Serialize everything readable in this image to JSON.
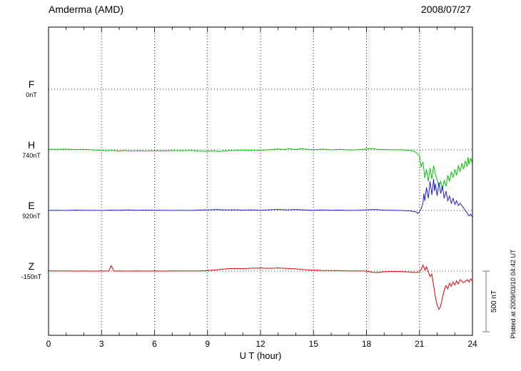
{
  "header": {
    "station": "Amderma (AMD)",
    "date": "2008/07/27"
  },
  "footer_note": "Plotted at 2009/03/10 04:42 UT",
  "chart_data": {
    "type": "line",
    "title": "Amderma (AMD)",
    "xlabel": "U T (hour)",
    "y_unit": "nT",
    "xlim": [
      0,
      24
    ],
    "x_ticks": [
      0,
      3,
      6,
      9,
      12,
      15,
      18,
      21,
      24
    ],
    "x_minor_step": 1,
    "grid": "dotted vertical at 3h, dotted horizontal at each baseline",
    "legend_position": "left-margin",
    "scale_bar": {
      "label": "500 nT",
      "nT": 500
    },
    "series": [
      {
        "name": "F",
        "label": "F",
        "baseline_label": "0nT",
        "baseline_nT": 0,
        "color": "#f0a500",
        "points": []
      },
      {
        "name": "H",
        "label": "H",
        "baseline_label": "740nT",
        "baseline_nT": 740,
        "color": "#00c400",
        "points": [
          [
            0,
            5
          ],
          [
            0.5,
            4
          ],
          [
            1,
            6
          ],
          [
            1.5,
            3
          ],
          [
            2,
            4
          ],
          [
            2.5,
            0
          ],
          [
            3,
            -4
          ],
          [
            3.3,
            -8
          ],
          [
            3.6,
            -5
          ],
          [
            4,
            -10
          ],
          [
            4.3,
            -6
          ],
          [
            4.6,
            -11
          ],
          [
            5,
            -8
          ],
          [
            5.5,
            -10
          ],
          [
            6,
            -7
          ],
          [
            6.5,
            -9
          ],
          [
            7,
            -6
          ],
          [
            7.5,
            -8
          ],
          [
            8,
            -5
          ],
          [
            8.5,
            -10
          ],
          [
            9,
            -13
          ],
          [
            9.3,
            -7
          ],
          [
            9.6,
            -14
          ],
          [
            10,
            -8
          ],
          [
            10.5,
            -4
          ],
          [
            11,
            -2
          ],
          [
            11.5,
            -6
          ],
          [
            12,
            -3
          ],
          [
            12.5,
            2
          ],
          [
            13,
            7
          ],
          [
            13.3,
            2
          ],
          [
            13.6,
            9
          ],
          [
            14,
            3
          ],
          [
            14.3,
            10
          ],
          [
            14.6,
            4
          ],
          [
            15,
            2
          ],
          [
            15.5,
            6
          ],
          [
            16,
            0
          ],
          [
            16.5,
            4
          ],
          [
            17,
            -2
          ],
          [
            17.5,
            2
          ],
          [
            18,
            7
          ],
          [
            18.3,
            11
          ],
          [
            18.6,
            5
          ],
          [
            19,
            3
          ],
          [
            19.5,
            0
          ],
          [
            20,
            2
          ],
          [
            20.3,
            -3
          ],
          [
            20.6,
            -8
          ],
          [
            20.8,
            -20
          ],
          [
            21,
            -50
          ],
          [
            21.1,
            -140
          ],
          [
            21.2,
            -100
          ],
          [
            21.3,
            -230
          ],
          [
            21.4,
            -160
          ],
          [
            21.5,
            -260
          ],
          [
            21.6,
            -150
          ],
          [
            21.7,
            -240
          ],
          [
            21.8,
            -130
          ],
          [
            21.9,
            -200
          ],
          [
            22,
            -250
          ],
          [
            22.1,
            -300
          ],
          [
            22.2,
            -260
          ],
          [
            22.3,
            -330
          ],
          [
            22.4,
            -250
          ],
          [
            22.5,
            -300
          ],
          [
            22.6,
            -210
          ],
          [
            22.7,
            -260
          ],
          [
            22.8,
            -180
          ],
          [
            22.9,
            -230
          ],
          [
            23,
            -160
          ],
          [
            23.1,
            -210
          ],
          [
            23.2,
            -130
          ],
          [
            23.3,
            -180
          ],
          [
            23.4,
            -110
          ],
          [
            23.5,
            -160
          ],
          [
            23.6,
            -90
          ],
          [
            23.7,
            -140
          ],
          [
            23.75,
            -60
          ],
          [
            23.8,
            -120
          ],
          [
            23.9,
            -70
          ],
          [
            24,
            -110
          ]
        ]
      },
      {
        "name": "E",
        "label": "E",
        "baseline_label": "920nT",
        "baseline_nT": 920,
        "color": "#2020cc",
        "points": [
          [
            0,
            0
          ],
          [
            0.5,
            2
          ],
          [
            1,
            0
          ],
          [
            1.5,
            3
          ],
          [
            2,
            1
          ],
          [
            2.5,
            2
          ],
          [
            3,
            0
          ],
          [
            3.5,
            3
          ],
          [
            4,
            1
          ],
          [
            4.5,
            4
          ],
          [
            5,
            2
          ],
          [
            5.5,
            3
          ],
          [
            6,
            1
          ],
          [
            6.5,
            2
          ],
          [
            7,
            0
          ],
          [
            7.5,
            2
          ],
          [
            8,
            0
          ],
          [
            8.5,
            3
          ],
          [
            9,
            5
          ],
          [
            9.5,
            8
          ],
          [
            10,
            4
          ],
          [
            10.5,
            6
          ],
          [
            11,
            3
          ],
          [
            11.5,
            5
          ],
          [
            12,
            2
          ],
          [
            12.5,
            6
          ],
          [
            13,
            9
          ],
          [
            13.5,
            5
          ],
          [
            14,
            8
          ],
          [
            14.5,
            4
          ],
          [
            15,
            2
          ],
          [
            15.5,
            4
          ],
          [
            16,
            1
          ],
          [
            16.5,
            3
          ],
          [
            17,
            0
          ],
          [
            17.5,
            2
          ],
          [
            18,
            5
          ],
          [
            18.5,
            8
          ],
          [
            19,
            3
          ],
          [
            19.5,
            1
          ],
          [
            20,
            0
          ],
          [
            20.5,
            -4
          ],
          [
            20.8,
            -12
          ],
          [
            20.9,
            -25
          ],
          [
            21,
            -10
          ],
          [
            21.1,
            15
          ],
          [
            21.2,
            60
          ],
          [
            21.25,
            140
          ],
          [
            21.3,
            80
          ],
          [
            21.4,
            190
          ],
          [
            21.5,
            100
          ],
          [
            21.6,
            240
          ],
          [
            21.7,
            130
          ],
          [
            21.8,
            260
          ],
          [
            21.85,
            160
          ],
          [
            21.9,
            220
          ],
          [
            22,
            120
          ],
          [
            22.1,
            230
          ],
          [
            22.2,
            140
          ],
          [
            22.3,
            200
          ],
          [
            22.4,
            100
          ],
          [
            22.5,
            160
          ],
          [
            22.6,
            80
          ],
          [
            22.7,
            120
          ],
          [
            22.8,
            60
          ],
          [
            22.9,
            100
          ],
          [
            23,
            50
          ],
          [
            23.1,
            80
          ],
          [
            23.2,
            40
          ],
          [
            23.3,
            60
          ],
          [
            23.5,
            20
          ],
          [
            23.6,
            0
          ],
          [
            23.7,
            -20
          ],
          [
            23.8,
            -45
          ],
          [
            23.9,
            -30
          ],
          [
            24,
            -55
          ]
        ]
      },
      {
        "name": "Z",
        "label": "Z",
        "baseline_label": "-150nT",
        "baseline_nT": -150,
        "color": "#e00000",
        "points": [
          [
            0,
            2
          ],
          [
            0.5,
            1
          ],
          [
            1,
            2
          ],
          [
            1.5,
            0
          ],
          [
            2,
            1
          ],
          [
            2.5,
            0
          ],
          [
            3,
            1
          ],
          [
            3.4,
            0
          ],
          [
            3.55,
            45
          ],
          [
            3.7,
            0
          ],
          [
            4,
            1
          ],
          [
            4.5,
            0
          ],
          [
            5,
            1
          ],
          [
            5.5,
            0
          ],
          [
            6,
            1
          ],
          [
            6.5,
            0
          ],
          [
            7,
            1
          ],
          [
            7.5,
            2
          ],
          [
            8,
            1
          ],
          [
            8.5,
            2
          ],
          [
            9,
            4
          ],
          [
            9.5,
            10
          ],
          [
            10,
            18
          ],
          [
            10.5,
            22
          ],
          [
            11,
            20
          ],
          [
            11.5,
            24
          ],
          [
            12,
            25
          ],
          [
            12.5,
            23
          ],
          [
            13,
            26
          ],
          [
            13.5,
            22
          ],
          [
            14,
            18
          ],
          [
            14.5,
            12
          ],
          [
            15,
            8
          ],
          [
            15.5,
            5
          ],
          [
            16,
            4
          ],
          [
            16.5,
            3
          ],
          [
            17,
            2
          ],
          [
            17.5,
            2
          ],
          [
            18,
            0
          ],
          [
            18.3,
            -8
          ],
          [
            18.6,
            -12
          ],
          [
            19,
            -5
          ],
          [
            19.5,
            -3
          ],
          [
            20,
            -4
          ],
          [
            20.5,
            -8
          ],
          [
            20.8,
            -12
          ],
          [
            21,
            -5
          ],
          [
            21.1,
            15
          ],
          [
            21.2,
            50
          ],
          [
            21.3,
            10
          ],
          [
            21.4,
            35
          ],
          [
            21.5,
            -10
          ],
          [
            21.6,
            -45
          ],
          [
            21.7,
            -25
          ],
          [
            21.8,
            -120
          ],
          [
            21.9,
            -210
          ],
          [
            22,
            -280
          ],
          [
            22.1,
            -315
          ],
          [
            22.2,
            -290
          ],
          [
            22.3,
            -220
          ],
          [
            22.4,
            -160
          ],
          [
            22.5,
            -120
          ],
          [
            22.6,
            -145
          ],
          [
            22.7,
            -100
          ],
          [
            22.8,
            -125
          ],
          [
            22.9,
            -90
          ],
          [
            23,
            -115
          ],
          [
            23.1,
            -80
          ],
          [
            23.2,
            -105
          ],
          [
            23.3,
            -70
          ],
          [
            23.5,
            -95
          ],
          [
            23.7,
            -70
          ],
          [
            23.8,
            -90
          ],
          [
            23.9,
            -65
          ],
          [
            24,
            -80
          ]
        ]
      }
    ]
  }
}
